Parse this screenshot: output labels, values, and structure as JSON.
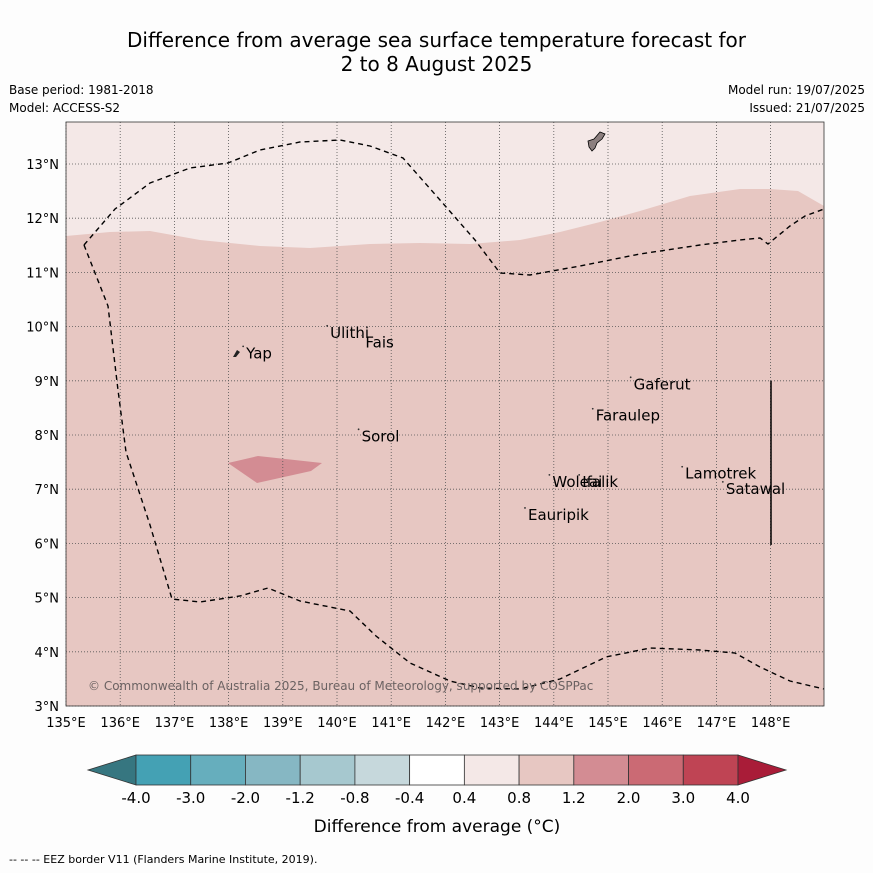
{
  "title": {
    "line1": "Difference from average sea surface temperature forecast for",
    "line2": "2 to 8 August 2025"
  },
  "meta": {
    "base_period": "Base period: 1981-2018",
    "model": "Model: ACCESS-S2",
    "model_run": "Model run: 19/07/2025",
    "issued": "Issued: 21/07/2025"
  },
  "map": {
    "lon_range": [
      135,
      149
    ],
    "lat_range": [
      3,
      13.8
    ],
    "lon_ticks": [
      {
        "v": 135,
        "label": "135°E"
      },
      {
        "v": 136,
        "label": "136°E"
      },
      {
        "v": 137,
        "label": "137°E"
      },
      {
        "v": 138,
        "label": "138°E"
      },
      {
        "v": 139,
        "label": "139°E"
      },
      {
        "v": 140,
        "label": "140°E"
      },
      {
        "v": 141,
        "label": "141°E"
      },
      {
        "v": 142,
        "label": "142°E"
      },
      {
        "v": 143,
        "label": "143°E"
      },
      {
        "v": 144,
        "label": "144°E"
      },
      {
        "v": 145,
        "label": "145°E"
      },
      {
        "v": 146,
        "label": "146°E"
      },
      {
        "v": 147,
        "label": "147°E"
      },
      {
        "v": 148,
        "label": "148°E"
      }
    ],
    "lat_ticks": [
      {
        "v": 3,
        "label": "3°N"
      },
      {
        "v": 4,
        "label": "4°N"
      },
      {
        "v": 5,
        "label": "5°N"
      },
      {
        "v": 6,
        "label": "6°N"
      },
      {
        "v": 7,
        "label": "7°N"
      },
      {
        "v": 8,
        "label": "8°N"
      },
      {
        "v": 9,
        "label": "9°N"
      },
      {
        "v": 10,
        "label": "10°N"
      },
      {
        "v": 11,
        "label": "11°N"
      },
      {
        "v": 12,
        "label": "12°N"
      },
      {
        "v": 13,
        "label": "13°N"
      }
    ],
    "islands": [
      {
        "name": "Yap",
        "lon": 138.25,
        "lat": 9.45
      },
      {
        "name": "Ulithi",
        "lon": 139.8,
        "lat": 9.83
      },
      {
        "name": "Fais",
        "lon": 140.45,
        "lat": 9.65
      },
      {
        "name": "Sorol",
        "lon": 140.38,
        "lat": 7.92
      },
      {
        "name": "Gaferut",
        "lon": 145.4,
        "lat": 8.88
      },
      {
        "name": "Faraulep",
        "lon": 144.7,
        "lat": 8.3
      },
      {
        "name": "Woleai",
        "lon": 143.9,
        "lat": 7.08
      },
      {
        "name": "Ifalik",
        "lon": 144.45,
        "lat": 7.08
      },
      {
        "name": "Lamotrek",
        "lon": 146.35,
        "lat": 7.23
      },
      {
        "name": "Satawal",
        "lon": 147.1,
        "lat": 6.95
      },
      {
        "name": "Eauripik",
        "lon": 143.45,
        "lat": 6.47
      }
    ],
    "copyright": "© Commonwealth of Australia 2025, Bureau of Meteorology, supported by COSPPac"
  },
  "colorbar": {
    "label": "Difference from average (°C)",
    "ticks": [
      "-4.0",
      "-3.0",
      "-2.0",
      "-1.2",
      "-0.8",
      "-0.4",
      "0.4",
      "0.8",
      "1.2",
      "2.0",
      "3.0",
      "4.0"
    ],
    "colors": [
      "#367680",
      "#44a1b4",
      "#66aebd",
      "#86b7c3",
      "#a6c8cf",
      "#c6d8dc",
      "#ffffff",
      "#f4e8e7",
      "#e7c7c2",
      "#d38c93",
      "#cb6a74",
      "#bf4454",
      "#a91c38"
    ]
  },
  "footer": "--  --  -- EEZ border V11 (Flanders Marine Institute, 2019)."
}
